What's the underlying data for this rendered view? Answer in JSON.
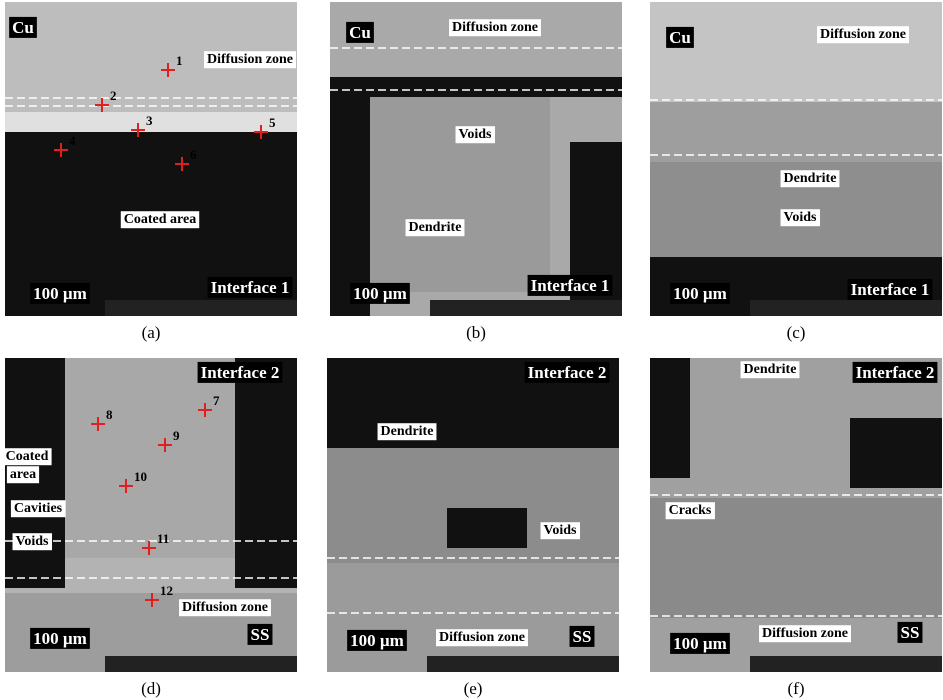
{
  "panels": [
    {
      "caption": "(a)",
      "labels": [
        "Cu",
        "Diffusion zone",
        "Coated area",
        "100 µm",
        "Interface 1"
      ],
      "points": [
        "1",
        "2",
        "3",
        "4",
        "5",
        "6"
      ]
    },
    {
      "caption": "(b)",
      "labels": [
        "Cu",
        "Diffusion zone",
        "Voids",
        "Dendrite",
        "100 µm",
        "Interface 1"
      ],
      "points": []
    },
    {
      "caption": "(c)",
      "labels": [
        "Cu",
        "Diffusion zone",
        "Dendrite",
        "Voids",
        "100 µm",
        "Interface 1"
      ],
      "points": []
    },
    {
      "caption": "(d)",
      "labels": [
        "Interface 2",
        "Coated",
        "area",
        "Cavities",
        "Voids",
        "Diffusion zone",
        "100 µm",
        "SS"
      ],
      "points": [
        "7",
        "8",
        "9",
        "10",
        "11",
        "12"
      ]
    },
    {
      "caption": "(e)",
      "labels": [
        "Interface 2",
        "Dendrite",
        "Voids",
        "Diffusion zone",
        "100 µm",
        "SS"
      ],
      "points": []
    },
    {
      "caption": "(f)",
      "labels": [
        "Dendrite",
        "Interface 2",
        "Cracks",
        "Diffusion zone",
        "100 µm",
        "SS"
      ],
      "points": []
    }
  ]
}
